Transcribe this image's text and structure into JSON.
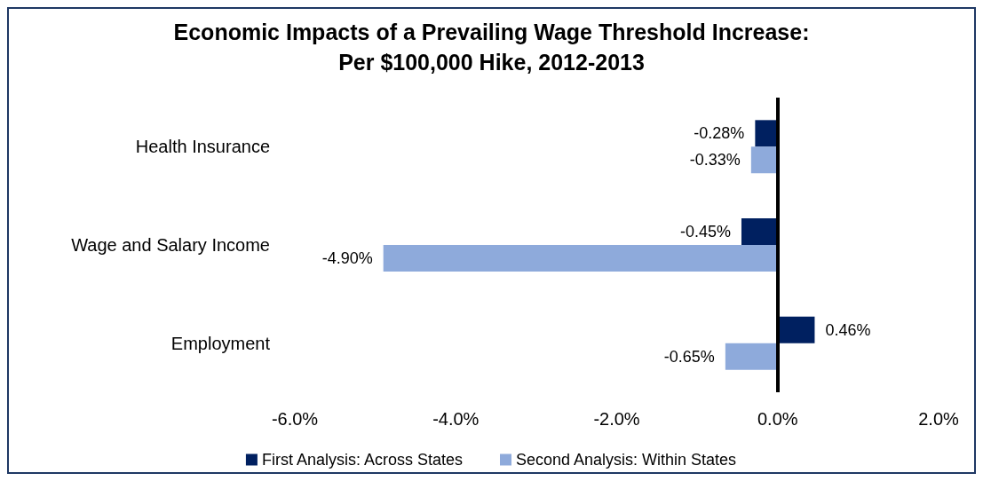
{
  "chart_data": {
    "type": "bar",
    "orientation": "horizontal",
    "title": "Economic Impacts of a Prevailing Wage Threshold Increase:\nPer $100,000 Hike, 2012-2013",
    "categories": [
      "Health Insurance",
      "Wage and Salary Income",
      "Employment"
    ],
    "series": [
      {
        "name": "First Analysis: Across States",
        "color": "#002060",
        "values": [
          -0.28,
          -0.45,
          0.46
        ],
        "value_labels": [
          "-0.28%",
          "-0.45%",
          "0.46%"
        ]
      },
      {
        "name": "Second Analysis: Within States",
        "color": "#8eaadb",
        "values": [
          -0.33,
          -4.9,
          -0.65
        ],
        "value_labels": [
          "-0.33%",
          "-4.90%",
          "-0.65%"
        ]
      }
    ],
    "xlim": [
      -6,
      2
    ],
    "xticks": [
      {
        "value": -6,
        "label": "-6.0%"
      },
      {
        "value": -4,
        "label": "-4.0%"
      },
      {
        "value": -2,
        "label": "-2.0%"
      },
      {
        "value": 0,
        "label": "0.0%"
      },
      {
        "value": 2,
        "label": "2.0%"
      }
    ],
    "ref_lines": [
      {
        "axis": "x",
        "value": 0,
        "color": "#000000"
      }
    ],
    "grid": false,
    "legend": "bottom"
  }
}
